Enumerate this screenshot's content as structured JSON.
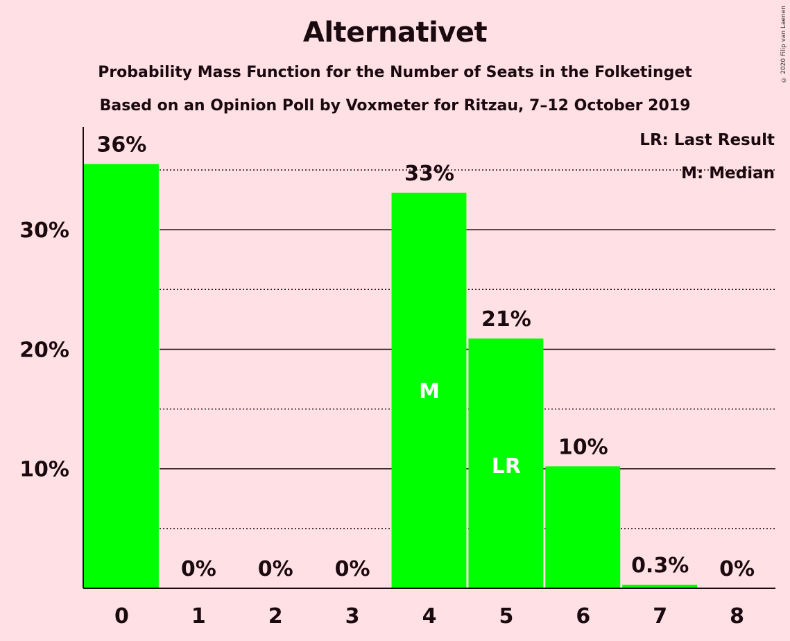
{
  "chart_data": {
    "type": "bar",
    "title": "Alternativet",
    "subtitle": "Probability Mass Function for the Number of Seats in the Folketinget",
    "subtitle2": "Based on an Opinion Poll by Voxmeter for Ritzau, 7–12 October 2019",
    "categories": [
      "0",
      "1",
      "2",
      "3",
      "4",
      "5",
      "6",
      "7",
      "8"
    ],
    "values": [
      35.5,
      0,
      0,
      0,
      33.1,
      20.9,
      10.2,
      0.3,
      0
    ],
    "data_labels": [
      "36%",
      "0%",
      "0%",
      "0%",
      "33%",
      "21%",
      "10%",
      "0.3%",
      "0%"
    ],
    "in_bar_labels": [
      "",
      "",
      "",
      "",
      "M",
      "LR",
      "",
      "",
      ""
    ],
    "yticks": [
      10,
      20,
      30
    ],
    "ytick_labels": [
      "10%",
      "20%",
      "30%"
    ],
    "minor_gridlines": [
      5,
      15,
      25,
      35
    ],
    "ylim": [
      0,
      38.6
    ],
    "legend": [
      "LR: Last Result",
      "M: Median"
    ],
    "legend_position": "top-right",
    "grid": true,
    "bar_color": "#00FF00",
    "background_color": "#FFE0E4"
  },
  "copyright": "© 2020 Filip van Laenen"
}
